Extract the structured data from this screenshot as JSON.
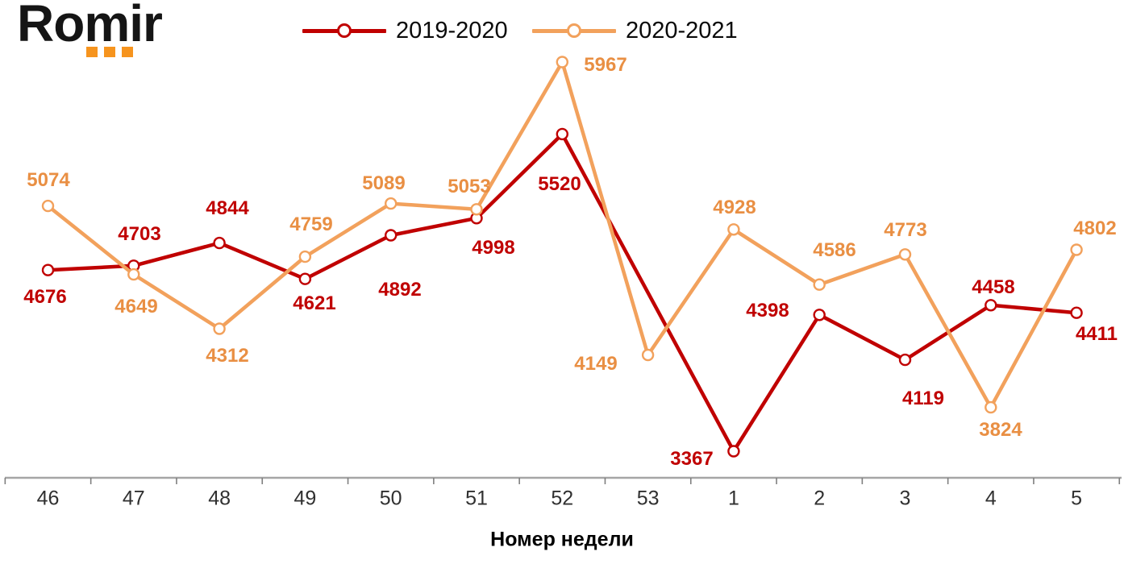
{
  "logo": {
    "text": "Romir",
    "dot_color": "#F6941E"
  },
  "legend": {
    "items": [
      {
        "label": "2019-2020",
        "color": "#C00000"
      },
      {
        "label": "2020-2021",
        "color": "#F2A15C"
      }
    ]
  },
  "chart_data": {
    "type": "line",
    "categories": [
      "46",
      "47",
      "48",
      "49",
      "50",
      "51",
      "52",
      "53",
      "1",
      "2",
      "3",
      "4",
      "5"
    ],
    "xlabel": "Номер недели",
    "series": [
      {
        "name": "2019-2020",
        "color": "#C00000",
        "label_color": "#C00000",
        "values": [
          4676,
          4703,
          4844,
          4621,
          4892,
          4998,
          5520,
          null,
          3367,
          4398,
          4119,
          4458,
          4411
        ]
      },
      {
        "name": "2020-2021",
        "color": "#F2A15C",
        "label_color": "#E98F43",
        "values": [
          5074,
          4649,
          4312,
          4759,
          5089,
          5053,
          5967,
          4149,
          4928,
          4586,
          4773,
          3824,
          4802
        ]
      }
    ],
    "value_range_shown": [
      3367,
      5967
    ],
    "legend_position": "top",
    "grid": "off",
    "marker": "open-circle",
    "axis_color": "#A6A6A6"
  }
}
